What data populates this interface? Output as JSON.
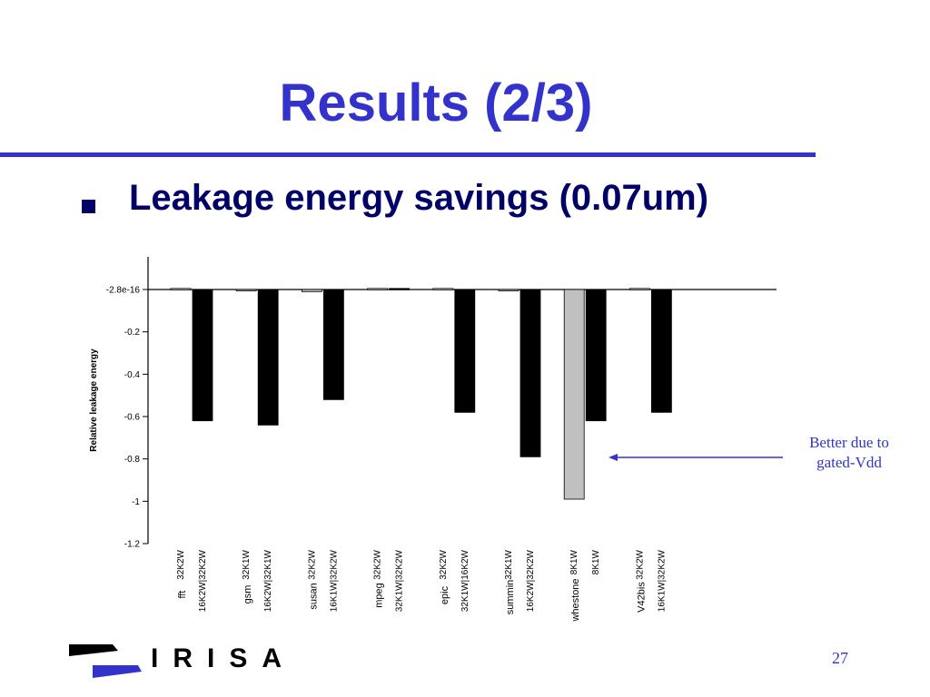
{
  "slide": {
    "title": "Results (2/3)",
    "bullet": "Leakage energy savings (0.07um)",
    "annotation_line1": "Better due to",
    "annotation_line2": "gated-Vdd",
    "page_number": "27",
    "logo_text": "IRISA"
  },
  "colors": {
    "title": "#3333cc",
    "bullet": "#000066",
    "bar_dark": "#000000",
    "bar_light": "#c0c0c0",
    "annotation": "#3333cc"
  },
  "chart_data": {
    "type": "bar",
    "ylabel": "Relative leakage energy",
    "ylim": [
      -1.2,
      0
    ],
    "yticks": [
      {
        "value": 0,
        "label": "-2.8e-16"
      },
      {
        "value": -0.2,
        "label": "-0.2"
      },
      {
        "value": -0.4,
        "label": "-0.4"
      },
      {
        "value": -0.6,
        "label": "-0.6"
      },
      {
        "value": -0.8,
        "label": "-0.8"
      },
      {
        "value": -1,
        "label": "-1"
      },
      {
        "value": -1.2,
        "label": "-1.2"
      }
    ],
    "groups": [
      {
        "name": "fft",
        "bars": [
          {
            "label": "32K2W",
            "value": 0.005,
            "shade": "light"
          },
          {
            "label": "16K2W|32K2W",
            "value": -0.62,
            "shade": "dark"
          }
        ]
      },
      {
        "name": "gsm",
        "bars": [
          {
            "label": "32K1W",
            "value": 0,
            "shade": "light"
          },
          {
            "label": "16K2W|32K1W",
            "value": -0.64,
            "shade": "dark"
          }
        ]
      },
      {
        "name": "susan",
        "bars": [
          {
            "label": "32K2W",
            "value": -0.01,
            "shade": "light"
          },
          {
            "label": "16K1W|32K2W",
            "value": -0.52,
            "shade": "dark"
          }
        ]
      },
      {
        "name": "mpeg",
        "bars": [
          {
            "label": "32K2W",
            "value": 0.005,
            "shade": "light"
          },
          {
            "label": "32K1W|32K2W",
            "value": 0.005,
            "shade": "dark"
          }
        ]
      },
      {
        "name": "epic",
        "bars": [
          {
            "label": "32K2W",
            "value": 0.005,
            "shade": "light"
          },
          {
            "label": "32K1W|16K2W",
            "value": -0.58,
            "shade": "dark"
          }
        ]
      },
      {
        "name": "summin",
        "bars": [
          {
            "label": "32K1W",
            "value": 0,
            "shade": "light"
          },
          {
            "label": "16K2W|32K2W",
            "value": -0.79,
            "shade": "dark"
          }
        ]
      },
      {
        "name": "whestone",
        "bars": [
          {
            "label": "8K1W",
            "value": -0.99,
            "shade": "light"
          },
          {
            "label": "8K1W",
            "value": -0.62,
            "shade": "dark"
          }
        ]
      },
      {
        "name": "V42bis",
        "bars": [
          {
            "label": "32K2W",
            "value": 0.005,
            "shade": "light"
          },
          {
            "label": "16K1W|32K2W",
            "value": -0.58,
            "shade": "dark"
          }
        ]
      }
    ],
    "grid": false,
    "legend": "none"
  }
}
